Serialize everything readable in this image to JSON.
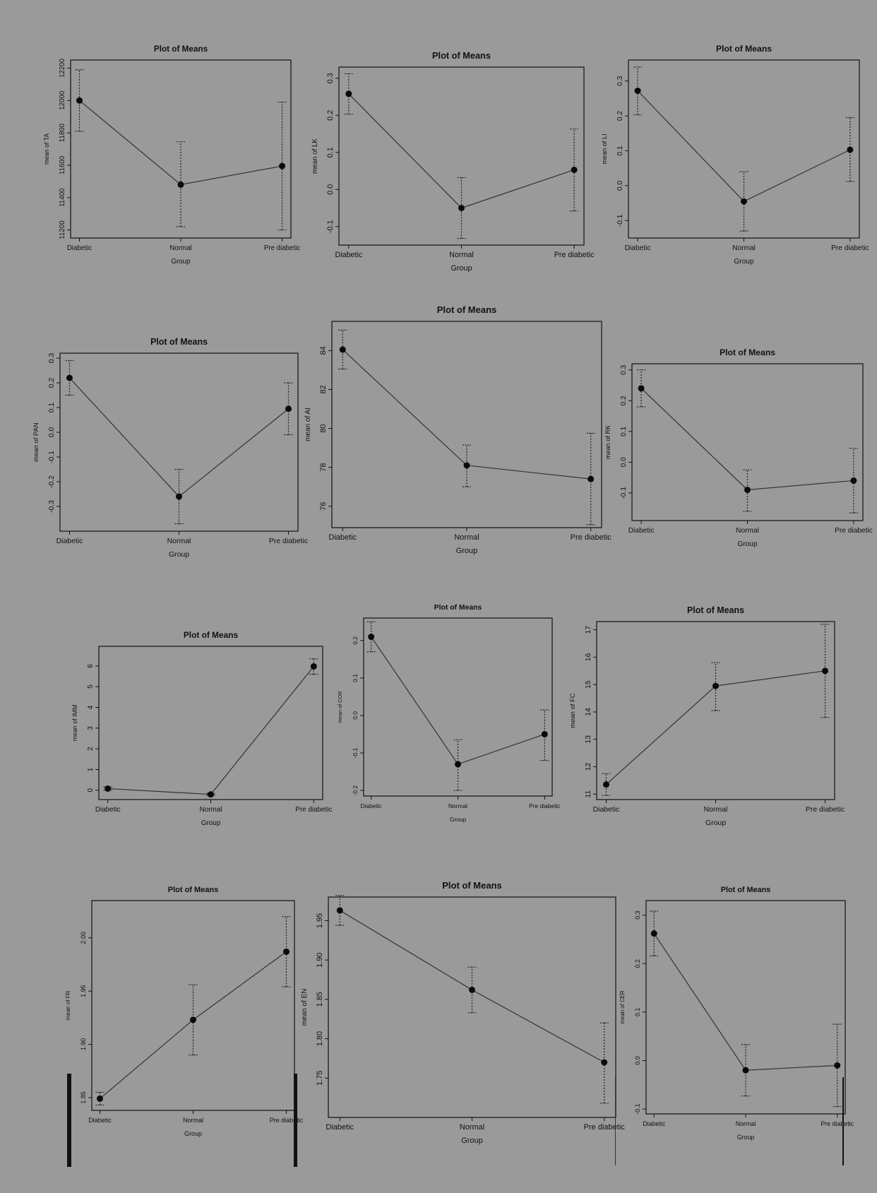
{
  "chart_data": [
    {
      "id": "TA",
      "type": "line",
      "title": "Plot of Means",
      "xlabel": "Group",
      "ylabel": "mean of TA",
      "categories": [
        "Diabetic",
        "Normal",
        "Pre diabetic"
      ],
      "ylim": [
        11150,
        12250
      ],
      "yticks": [
        {
          "v": 11200,
          "label": "11200"
        },
        {
          "v": 11400,
          "label": "11400"
        },
        {
          "v": 11600,
          "label": "11600"
        },
        {
          "v": 11800,
          "label": "11800"
        },
        {
          "v": 12000,
          "label": "12000"
        },
        {
          "v": 12200,
          "label": "12200"
        }
      ],
      "series": [
        {
          "values": [
            12000,
            11480,
            11595
          ],
          "ci_lower": [
            11810,
            11220,
            11200
          ],
          "ci_upper": [
            12190,
            11745,
            11990
          ]
        }
      ]
    },
    {
      "id": "LK",
      "type": "line",
      "title": "Plot of Means",
      "xlabel": "Group",
      "ylabel": "mean of LK",
      "categories": [
        "Diabetic",
        "Normal",
        "Pre diabetic"
      ],
      "ylim": [
        -0.15,
        0.33
      ],
      "yticks": [
        {
          "v": -0.1,
          "label": "-0.1"
        },
        {
          "v": 0.0,
          "label": "0.0"
        },
        {
          "v": 0.1,
          "label": "0.1"
        },
        {
          "v": 0.2,
          "label": "0.2"
        },
        {
          "v": 0.3,
          "label": "0.3"
        }
      ],
      "series": [
        {
          "values": [
            0.258,
            -0.05,
            0.053
          ],
          "ci_lower": [
            0.203,
            -0.132,
            -0.058
          ],
          "ci_upper": [
            0.312,
            0.032,
            0.163
          ]
        }
      ]
    },
    {
      "id": "LI",
      "type": "line",
      "title": "Plot of Means",
      "xlabel": "Group",
      "ylabel": "mean of LI",
      "categories": [
        "Diabetic",
        "Normal",
        "Pre diabetic"
      ],
      "ylim": [
        -0.15,
        0.36
      ],
      "yticks": [
        {
          "v": -0.1,
          "label": "-0.1"
        },
        {
          "v": 0.0,
          "label": "0.0"
        },
        {
          "v": 0.1,
          "label": "0.1"
        },
        {
          "v": 0.2,
          "label": "0.2"
        },
        {
          "v": 0.3,
          "label": "0.3"
        }
      ],
      "series": [
        {
          "values": [
            0.272,
            -0.045,
            0.103
          ],
          "ci_lower": [
            0.203,
            -0.13,
            0.012
          ],
          "ci_upper": [
            0.34,
            0.04,
            0.195
          ]
        }
      ]
    },
    {
      "id": "PAN",
      "type": "line",
      "title": "Plot of Means",
      "xlabel": "Group",
      "ylabel": "mean of PAN",
      "categories": [
        "Diabetic",
        "Normal",
        "Pre diabetic"
      ],
      "ylim": [
        -0.4,
        0.32
      ],
      "yticks": [
        {
          "v": -0.3,
          "label": "-0.3"
        },
        {
          "v": -0.2,
          "label": "-0.2"
        },
        {
          "v": -0.1,
          "label": "-0.1"
        },
        {
          "v": 0.0,
          "label": "0.0"
        },
        {
          "v": 0.1,
          "label": "0.1"
        },
        {
          "v": 0.2,
          "label": "0.2"
        },
        {
          "v": 0.3,
          "label": "0.3"
        }
      ],
      "series": [
        {
          "values": [
            0.22,
            -0.26,
            0.095
          ],
          "ci_lower": [
            0.15,
            -0.37,
            -0.01
          ],
          "ci_upper": [
            0.29,
            -0.15,
            0.2
          ]
        }
      ]
    },
    {
      "id": "AI",
      "type": "line",
      "title": "Plot of Means",
      "xlabel": "Group",
      "ylabel": "mean of AI",
      "categories": [
        "Diabetic",
        "Normal",
        "Pre diabetic"
      ],
      "ylim": [
        74.9,
        85.5
      ],
      "yticks": [
        {
          "v": 76,
          "label": "76"
        },
        {
          "v": 78,
          "label": "78"
        },
        {
          "v": 80,
          "label": "80"
        },
        {
          "v": 82,
          "label": "82"
        },
        {
          "v": 84,
          "label": "84"
        }
      ],
      "series": [
        {
          "values": [
            84.05,
            78.1,
            77.4
          ],
          "ci_lower": [
            83.05,
            77.0,
            75.05
          ],
          "ci_upper": [
            85.05,
            79.15,
            79.75
          ]
        }
      ]
    },
    {
      "id": "RK",
      "type": "line",
      "title": "Plot of Means",
      "xlabel": "Group",
      "ylabel": "mean of RK",
      "categories": [
        "Diabetic",
        "Normal",
        "Pre diabetic"
      ],
      "ylim": [
        -0.19,
        0.32
      ],
      "yticks": [
        {
          "v": -0.1,
          "label": "-0.1"
        },
        {
          "v": 0.0,
          "label": "0.0"
        },
        {
          "v": 0.1,
          "label": "0.1"
        },
        {
          "v": 0.2,
          "label": "0.2"
        },
        {
          "v": 0.3,
          "label": "0.3"
        }
      ],
      "series": [
        {
          "values": [
            0.24,
            -0.09,
            -0.06
          ],
          "ci_lower": [
            0.18,
            -0.16,
            -0.165
          ],
          "ci_upper": [
            0.3,
            -0.025,
            0.045
          ]
        }
      ]
    },
    {
      "id": "IMM",
      "type": "line",
      "title": "Plot of Means",
      "xlabel": "Group",
      "ylabel": "mean of IMM",
      "categories": [
        "Diabetic",
        "Normal",
        "Pre diabetic"
      ],
      "ylim": [
        -0.45,
        6.95
      ],
      "yticks": [
        {
          "v": 0,
          "label": "0"
        },
        {
          "v": 1,
          "label": "1"
        },
        {
          "v": 2,
          "label": "2"
        },
        {
          "v": 3,
          "label": "3"
        },
        {
          "v": 4,
          "label": "4"
        },
        {
          "v": 5,
          "label": "5"
        },
        {
          "v": 6,
          "label": "6"
        }
      ],
      "series": [
        {
          "values": [
            0.08,
            -0.2,
            5.98
          ],
          "ci_lower": [
            0.0,
            -0.25,
            5.6
          ],
          "ci_upper": [
            0.16,
            -0.15,
            6.35
          ]
        }
      ]
    },
    {
      "id": "COR",
      "type": "line",
      "title": "Plot of Means",
      "xlabel": "Group",
      "ylabel": "mean of COR",
      "categories": [
        "Diabetic",
        "Normal",
        "Pre diabetic"
      ],
      "ylim": [
        -0.215,
        0.26
      ],
      "yticks": [
        {
          "v": -0.2,
          "label": "-0.2"
        },
        {
          "v": -0.1,
          "label": "-0.1"
        },
        {
          "v": 0.0,
          "label": "0.0"
        },
        {
          "v": 0.1,
          "label": "0.1"
        },
        {
          "v": 0.2,
          "label": "0.2"
        }
      ],
      "series": [
        {
          "values": [
            0.21,
            -0.13,
            -0.05
          ],
          "ci_lower": [
            0.17,
            -0.2,
            -0.12
          ],
          "ci_upper": [
            0.25,
            -0.065,
            0.015
          ]
        }
      ]
    },
    {
      "id": "FC",
      "type": "line",
      "title": "Plot of Means",
      "xlabel": "Group",
      "ylabel": "mean of FC",
      "categories": [
        "Diabetic",
        "Normal",
        "Pre diabetic"
      ],
      "ylim": [
        10.8,
        17.3
      ],
      "yticks": [
        {
          "v": 11,
          "label": "11"
        },
        {
          "v": 12,
          "label": "12"
        },
        {
          "v": 13,
          "label": "13"
        },
        {
          "v": 14,
          "label": "14"
        },
        {
          "v": 15,
          "label": "15"
        },
        {
          "v": 16,
          "label": "16"
        },
        {
          "v": 17,
          "label": "17"
        }
      ],
      "series": [
        {
          "values": [
            11.35,
            14.95,
            15.5
          ],
          "ci_lower": [
            10.95,
            14.05,
            13.8
          ],
          "ci_upper": [
            11.75,
            15.8,
            17.2
          ]
        }
      ]
    },
    {
      "id": "FR",
      "type": "line",
      "title": "Plot of Means",
      "xlabel": "Group",
      "ylabel": "mean of FR",
      "categories": [
        "Diabetic",
        "Normal",
        "Pre diabetic"
      ],
      "ylim": [
        1.838,
        2.035
      ],
      "yticks": [
        {
          "v": 1.85,
          "label": "1.85"
        },
        {
          "v": 1.9,
          "label": "1.90"
        },
        {
          "v": 1.95,
          "label": "1.95"
        },
        {
          "v": 2.0,
          "label": "2.00"
        }
      ],
      "series": [
        {
          "values": [
            1.849,
            1.923,
            1.987
          ],
          "ci_lower": [
            1.843,
            1.89,
            1.954
          ],
          "ci_upper": [
            1.855,
            1.956,
            2.02
          ]
        }
      ]
    },
    {
      "id": "EN",
      "type": "line",
      "title": "Plot of Means",
      "xlabel": "Group",
      "ylabel": "mean of EN",
      "categories": [
        "Diabetic",
        "Normal",
        "Pre diabetic"
      ],
      "ylim": [
        1.7,
        1.98
      ],
      "yticks": [
        {
          "v": 1.75,
          "label": "1.75"
        },
        {
          "v": 1.8,
          "label": "1.80"
        },
        {
          "v": 1.85,
          "label": "1.85"
        },
        {
          "v": 1.9,
          "label": "1.90"
        },
        {
          "v": 1.95,
          "label": "1.95"
        }
      ],
      "series": [
        {
          "values": [
            1.963,
            1.862,
            1.77
          ],
          "ci_lower": [
            1.944,
            1.833,
            1.718
          ],
          "ci_upper": [
            1.982,
            1.891,
            1.82
          ]
        }
      ]
    },
    {
      "id": "CER",
      "type": "line",
      "title": "Plot of Means",
      "xlabel": "Group",
      "ylabel": "mean of CER",
      "categories": [
        "Diabetic",
        "Normal",
        "Pre diabetic"
      ],
      "ylim": [
        -0.11,
        0.33
      ],
      "yticks": [
        {
          "v": -0.1,
          "label": "-0.1"
        },
        {
          "v": 0.0,
          "label": "0.0"
        },
        {
          "v": 0.1,
          "label": "0.1"
        },
        {
          "v": 0.2,
          "label": "0.2"
        },
        {
          "v": 0.3,
          "label": "0.3"
        }
      ],
      "series": [
        {
          "values": [
            0.262,
            -0.02,
            -0.01
          ],
          "ci_lower": [
            0.216,
            -0.073,
            -0.095
          ],
          "ci_upper": [
            0.308,
            0.033,
            0.075
          ]
        }
      ]
    }
  ]
}
